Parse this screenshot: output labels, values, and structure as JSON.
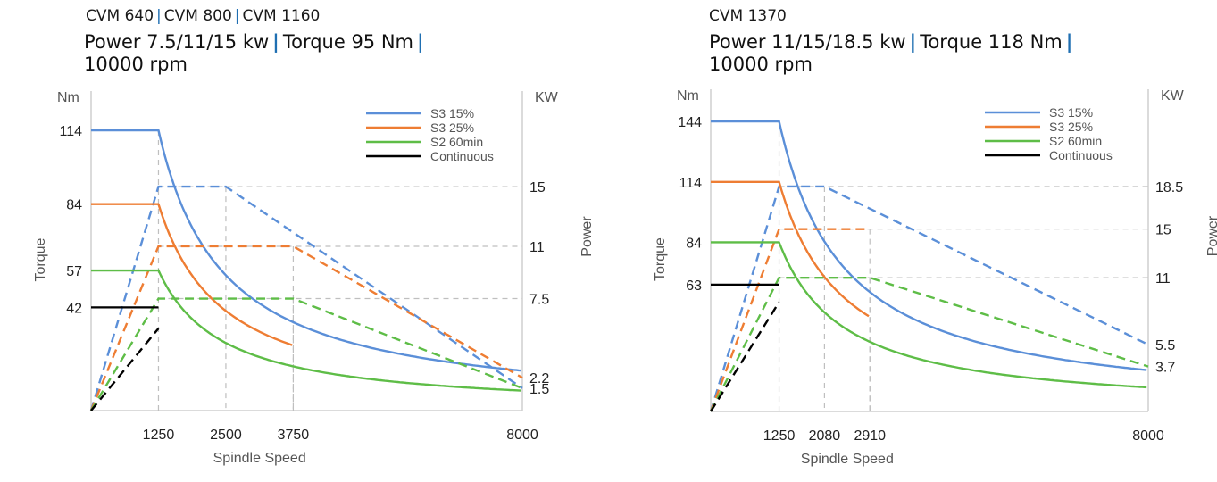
{
  "panels": [
    {
      "models": [
        "CVM 640",
        "CVM 800",
        "CVM 1160"
      ],
      "spec": [
        "Power 7.5/11/15 kw",
        "Torque 95 Nm",
        "10000 rpm"
      ],
      "spec_trailing_sep": true
    },
    {
      "models": [
        "CVM 1370"
      ],
      "spec": [
        "Power 11/15/18.5 kw",
        "Torque 118 Nm",
        "10000 rpm"
      ],
      "spec_trailing_sep": true
    }
  ],
  "colors": {
    "s3_15": "#5b8fd8",
    "s3_25": "#ee7d33",
    "s2_60": "#5ebd47",
    "continuous": "#000000",
    "grid": "#bfbfbf",
    "axis": "#cfcfcf"
  },
  "chart_data": [
    {
      "type": "line",
      "xlabel": "Spindle Speed",
      "ylabel_left": "Torque",
      "ylabel_right": "Power",
      "unit_left": "Nm",
      "unit_right": "KW",
      "x_ticks": [
        1250,
        2500,
        3750,
        8000
      ],
      "x_tick_labels": [
        "1250",
        "2500",
        "3750",
        "8000"
      ],
      "torque_ticks": [
        114,
        84,
        57,
        42
      ],
      "power_ticks": [
        15,
        11,
        7.5,
        2.2,
        1.5
      ],
      "xlim": [
        0,
        8000
      ],
      "torque_ylim": [
        0,
        130
      ],
      "power_ylim": [
        0,
        21.4
      ],
      "legend_position": "top-right",
      "series": [
        {
          "name": "S3 15%",
          "color_key": "s3_15",
          "rated_torque": 114,
          "rated_speed": 1250,
          "power": {
            "base_speed": 1250,
            "peak": 15,
            "const_until": 2500,
            "end_speed": 8000,
            "end_power": 1.5
          },
          "torque_end_speed": 8000
        },
        {
          "name": "S3 25%",
          "color_key": "s3_25",
          "rated_torque": 84,
          "rated_speed": 1250,
          "power": {
            "base_speed": 1250,
            "peak": 11,
            "const_until": 3750,
            "end_speed": 8000,
            "end_power": 2.2
          },
          "torque_end_speed": 3750
        },
        {
          "name": "S2 60min",
          "color_key": "s2_60",
          "rated_torque": 57,
          "rated_speed": 1250,
          "power": {
            "base_speed": 1250,
            "peak": 7.5,
            "const_until": 3750,
            "end_speed": 8000,
            "end_power": 1.5
          },
          "torque_end_speed": 8000
        },
        {
          "name": "Continuous",
          "color_key": "continuous",
          "rated_torque": 42,
          "rated_speed": 1250,
          "power": {
            "base_speed": 1250,
            "peak": 5.5
          },
          "torque_end_speed": 1250
        }
      ]
    },
    {
      "type": "line",
      "xlabel": "Spindle Speed",
      "ylabel_left": "Torque",
      "ylabel_right": "Power",
      "unit_left": "Nm",
      "unit_right": "KW",
      "x_ticks": [
        1250,
        2080,
        2910,
        8000
      ],
      "x_tick_labels": [
        "1250",
        "2080",
        "2910",
        "8000"
      ],
      "torque_ticks": [
        144,
        114,
        84,
        63
      ],
      "power_ticks": [
        18.5,
        15,
        11,
        5.5,
        3.7
      ],
      "xlim": [
        0,
        8000
      ],
      "torque_ylim": [
        0,
        160
      ],
      "power_ylim": [
        0,
        26.5
      ],
      "legend_position": "top-right",
      "series": [
        {
          "name": "S3 15%",
          "color_key": "s3_15",
          "rated_torque": 144,
          "rated_speed": 1250,
          "power": {
            "base_speed": 1250,
            "peak": 18.5,
            "const_until": 2080,
            "end_speed": 8000,
            "end_power": 5.5
          },
          "torque_end_speed": 8000
        },
        {
          "name": "S3 25%",
          "color_key": "s3_25",
          "rated_torque": 114,
          "rated_speed": 1250,
          "power": {
            "base_speed": 1250,
            "peak": 15,
            "const_until": 2910,
            "end_speed": 2910,
            "end_power": 15
          },
          "torque_end_speed": 2910
        },
        {
          "name": "S2 60min",
          "color_key": "s2_60",
          "rated_torque": 84,
          "rated_speed": 1250,
          "power": {
            "base_speed": 1250,
            "peak": 11,
            "const_until": 2910,
            "end_speed": 8000,
            "end_power": 3.7
          },
          "torque_end_speed": 8000
        },
        {
          "name": "Continuous",
          "color_key": "continuous",
          "rated_torque": 63,
          "rated_speed": 1250,
          "power": {
            "base_speed": 1250,
            "peak": 9
          },
          "torque_end_speed": 1250
        }
      ]
    }
  ]
}
